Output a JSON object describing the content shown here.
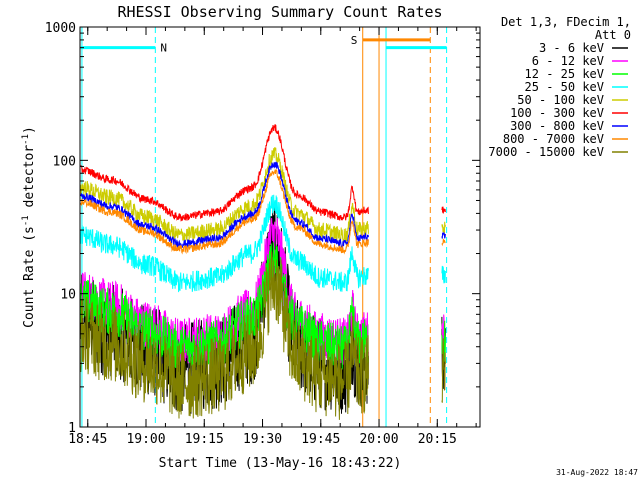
{
  "chart_data": {
    "type": "line",
    "title": "RHESSI Observing Summary Count Rates",
    "xlabel": "Start Time (13-May-16 18:43:22)",
    "ylabel_main": "Count Rate (s",
    "ylabel_sup1": "-1",
    "ylabel_mid": " detector",
    "ylabel_sup2": "-1",
    "ylabel_end": ")",
    "yscale": "log",
    "ylim": [
      1,
      1000
    ],
    "xlim_min": [
      18.7167,
      20.4333
    ],
    "x_ticks": [
      {
        "t": 18.75,
        "label": "18:45"
      },
      {
        "t": 19.0,
        "label": "19:00"
      },
      {
        "t": 19.25,
        "label": "19:15"
      },
      {
        "t": 19.5,
        "label": "19:30"
      },
      {
        "t": 19.75,
        "label": "19:45"
      },
      {
        "t": 20.0,
        "label": "20:00"
      },
      {
        "t": 20.25,
        "label": "20:15"
      }
    ],
    "y_ticks": [
      {
        "v": 1,
        "label": "1"
      },
      {
        "v": 10,
        "label": "10"
      },
      {
        "v": 100,
        "label": "100"
      },
      {
        "v": 1000,
        "label": "1000"
      }
    ],
    "legend_header": [
      "Det 1,3, FDecim 1,",
      "Att 0"
    ],
    "series": [
      {
        "name": "3 - 6 keV",
        "color": "#000000",
        "peak": 22,
        "base": 5,
        "noise": 0.35
      },
      {
        "name": "6 - 12 keV",
        "color": "#ff00ff",
        "peak": 28,
        "base": 8,
        "noise": 0.18
      },
      {
        "name": "12 - 25 keV",
        "color": "#00ff00",
        "peak": 17,
        "base": 7,
        "noise": 0.18
      },
      {
        "name": "25 - 50 keV",
        "color": "#00ffff",
        "peak": 48,
        "base": 22,
        "noise": 0.08
      },
      {
        "name": "50 - 100 keV",
        "color": "#cccc00",
        "peak": 110,
        "base": 50,
        "noise": 0.06
      },
      {
        "name": "100 - 300 keV",
        "color": "#ff0000",
        "peak": 175,
        "base": 68,
        "noise": 0.03
      },
      {
        "name": "300 - 800 keV",
        "color": "#0000ff",
        "peak": 95,
        "base": 43,
        "noise": 0.03
      },
      {
        "name": "800 - 7000 keV",
        "color": "#ff8800",
        "peak": 82,
        "base": 39,
        "noise": 0.03
      },
      {
        "name": "7000 - 15000 keV",
        "color": "#808000",
        "peak": 12,
        "base": 4,
        "noise": 0.3
      }
    ],
    "shape_points": [
      {
        "t": 18.72,
        "f": 1.25
      },
      {
        "t": 18.85,
        "f": 1.05
      },
      {
        "t": 19.0,
        "f": 0.75
      },
      {
        "t": 19.15,
        "f": 0.55
      },
      {
        "t": 19.3,
        "f": 0.6
      },
      {
        "t": 19.45,
        "f": 0.9
      },
      {
        "t": 19.55,
        "f": 1.0
      },
      {
        "t": 19.65,
        "f": 0.8
      },
      {
        "t": 19.75,
        "f": 0.6
      },
      {
        "t": 19.85,
        "f": 0.55
      },
      {
        "t": 19.95,
        "f": 0.62
      }
    ],
    "data_segments": [
      {
        "start": 18.72,
        "end": 19.955
      },
      {
        "start": 20.27,
        "end": 20.285
      }
    ],
    "bars": [
      {
        "start": 18.72,
        "end": 19.04,
        "level": 700,
        "label": "N",
        "color": "#00ffff"
      },
      {
        "start": 19.93,
        "end": 20.22,
        "level": 800,
        "label": "S",
        "color": "#ff8800"
      },
      {
        "start": 20.03,
        "end": 20.29,
        "level": 700,
        "label": "",
        "color": "#00ffff"
      }
    ],
    "vlines": [
      {
        "t": 18.725,
        "color": "#00ffff",
        "style": "solid"
      },
      {
        "t": 19.04,
        "color": "#00ffff",
        "style": "dash"
      },
      {
        "t": 19.93,
        "color": "#ff8800",
        "style": "solid"
      },
      {
        "t": 20.0,
        "color": "#ff8800",
        "style": "solid"
      },
      {
        "t": 20.03,
        "color": "#00ffff",
        "style": "solid"
      },
      {
        "t": 20.22,
        "color": "#ff8800",
        "style": "dash"
      },
      {
        "t": 20.29,
        "color": "#00ffff",
        "style": "dash"
      }
    ],
    "grid": false,
    "legend_position": "right"
  },
  "footer": {
    "timestamp": "31-Aug-2022 18:47"
  }
}
